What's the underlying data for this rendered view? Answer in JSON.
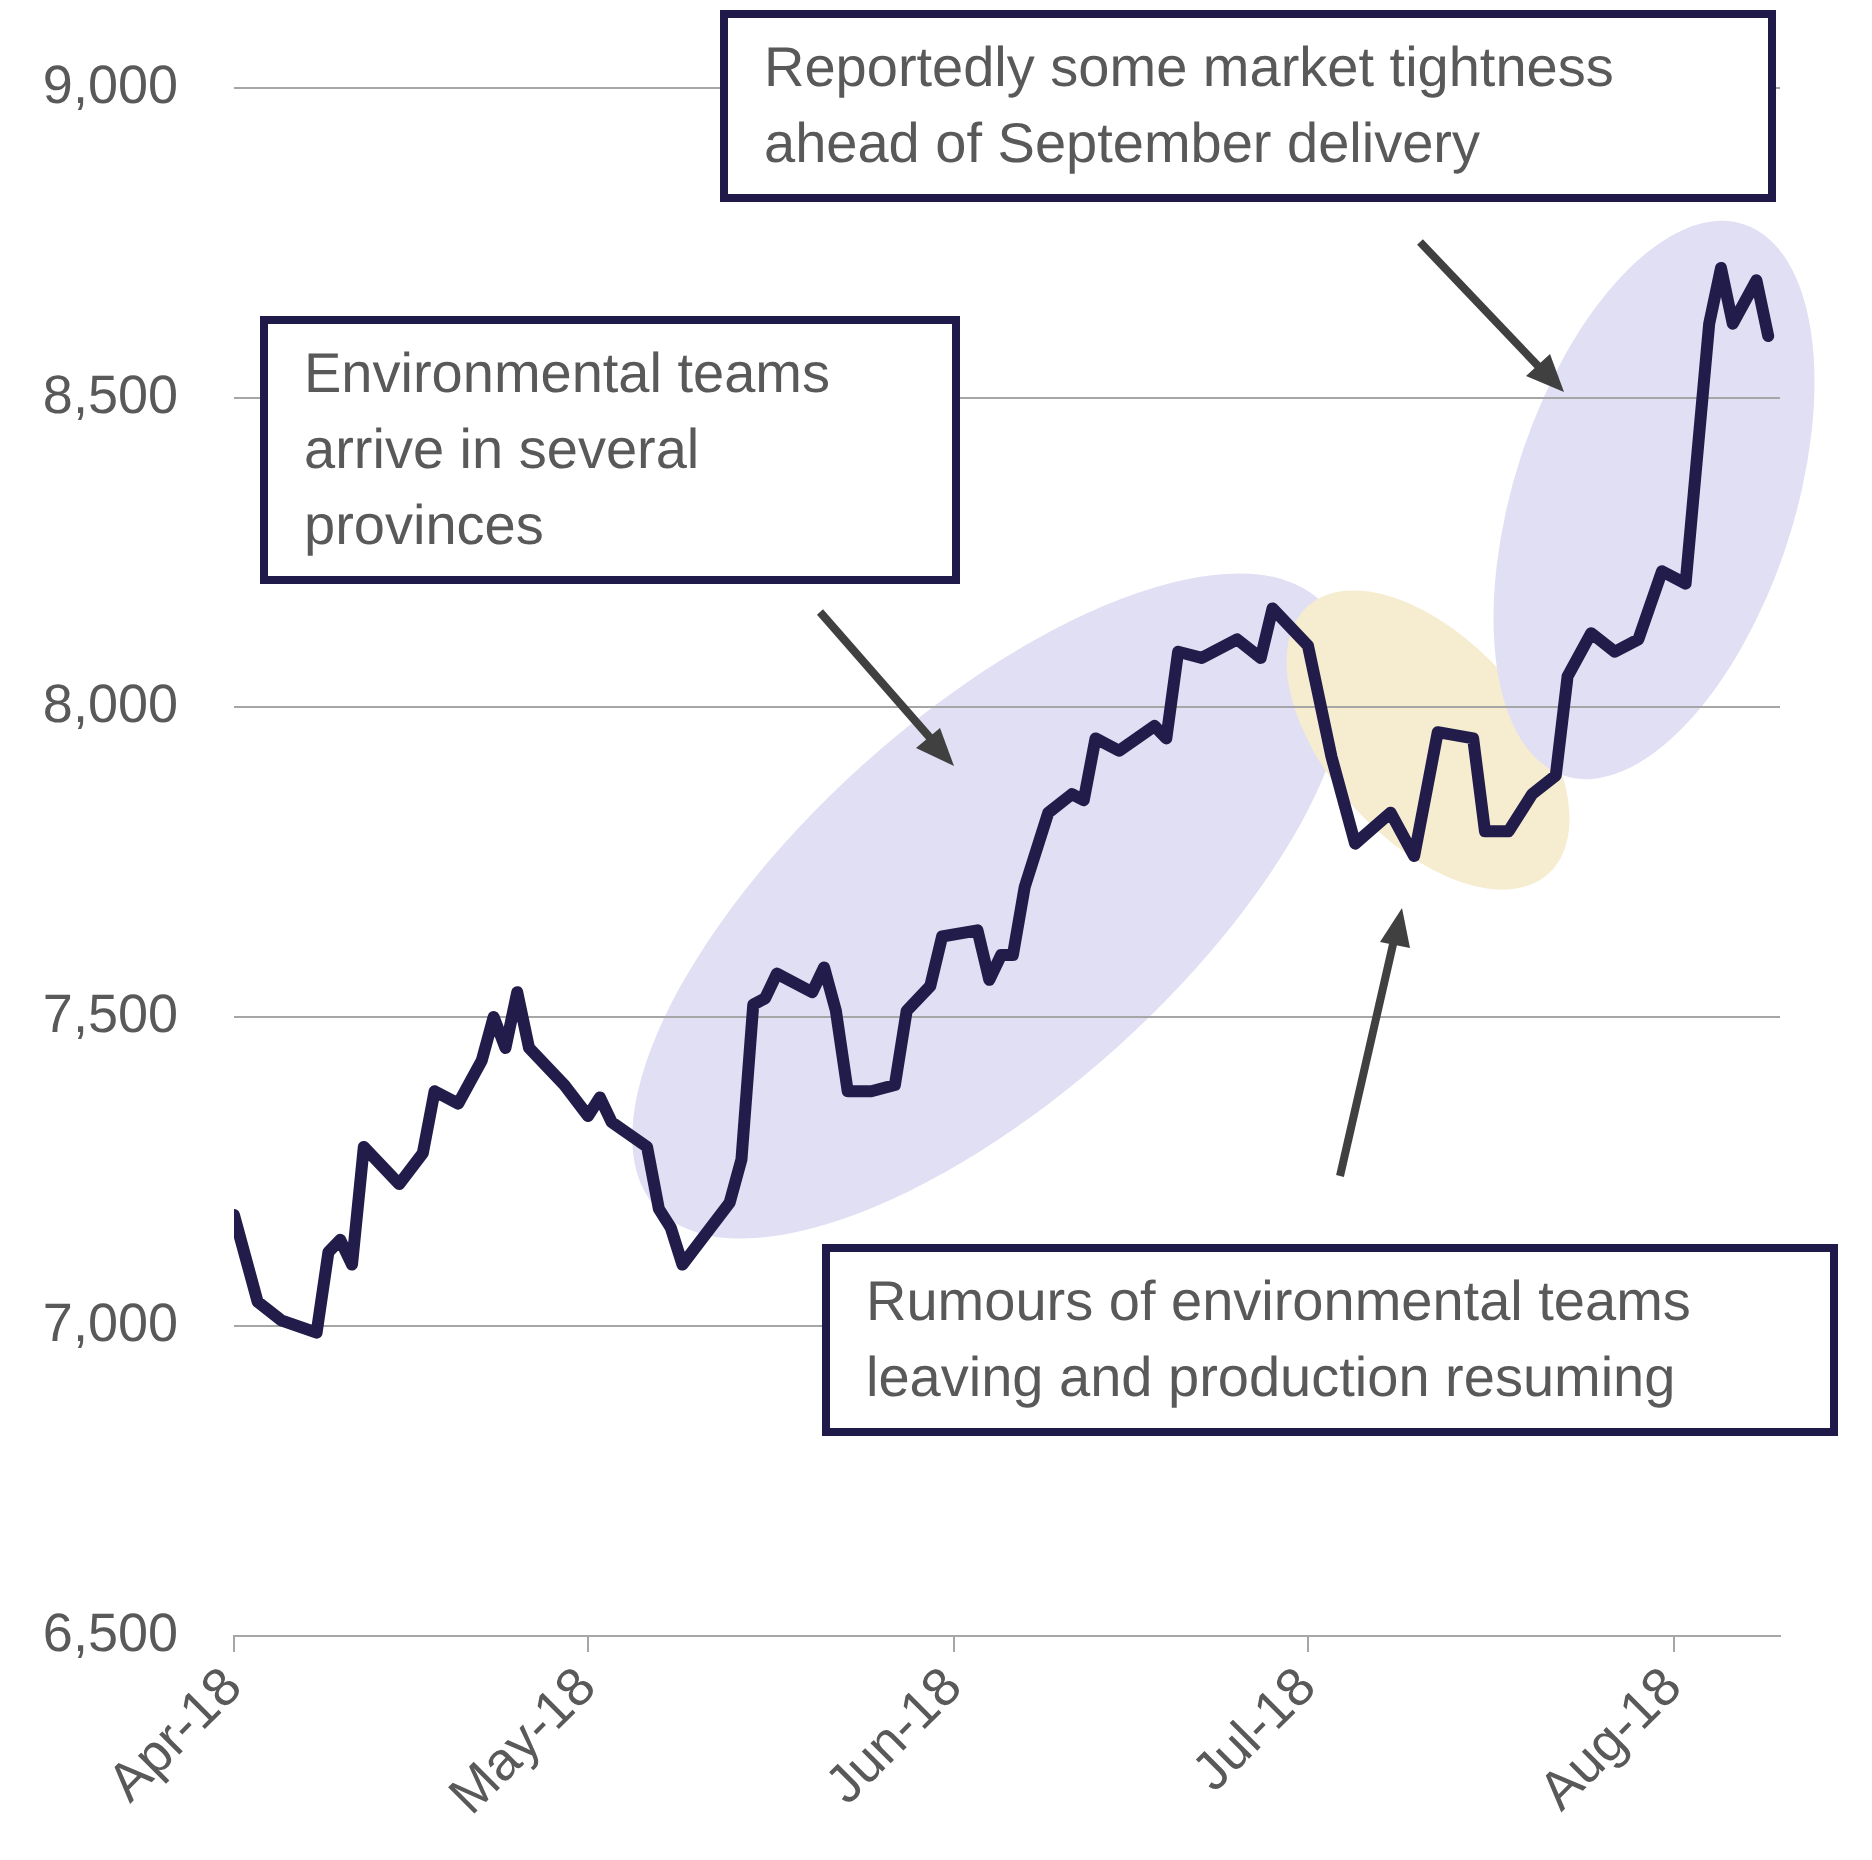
{
  "chart_data": {
    "type": "line",
    "x": [
      "2018-04-01",
      "2018-04-03",
      "2018-04-05",
      "2018-04-08",
      "2018-04-09",
      "2018-04-10",
      "2018-04-11",
      "2018-04-12",
      "2018-04-15",
      "2018-04-17",
      "2018-04-18",
      "2018-04-20",
      "2018-04-22",
      "2018-04-23",
      "2018-04-24",
      "2018-04-25",
      "2018-04-26",
      "2018-04-29",
      "2018-05-01",
      "2018-05-02",
      "2018-05-03",
      "2018-05-06",
      "2018-05-07",
      "2018-05-08",
      "2018-05-09",
      "2018-05-13",
      "2018-05-14",
      "2018-05-15",
      "2018-05-16",
      "2018-05-17",
      "2018-05-20",
      "2018-05-21",
      "2018-05-22",
      "2018-05-23",
      "2018-05-25",
      "2018-05-27",
      "2018-05-28",
      "2018-05-30",
      "2018-05-31",
      "2018-06-03",
      "2018-06-04",
      "2018-06-05",
      "2018-06-06",
      "2018-06-07",
      "2018-06-09",
      "2018-06-11",
      "2018-06-12",
      "2018-06-13",
      "2018-06-15",
      "2018-06-18",
      "2018-06-19",
      "2018-06-20",
      "2018-06-22",
      "2018-06-25",
      "2018-06-27",
      "2018-06-28",
      "2018-07-01",
      "2018-07-03",
      "2018-07-05",
      "2018-07-08",
      "2018-07-10",
      "2018-07-12",
      "2018-07-15",
      "2018-07-16",
      "2018-07-18",
      "2018-07-20",
      "2018-07-22",
      "2018-07-23",
      "2018-07-25",
      "2018-07-27",
      "2018-07-29",
      "2018-07-31",
      "2018-08-02",
      "2018-08-03",
      "2018-08-04",
      "2018-08-05",
      "2018-08-06",
      "2018-08-08",
      "2018-08-09"
    ],
    "series": [
      {
        "color": "#221c4a",
        "values": [
          7180,
          7040,
          7010,
          6990,
          7120,
          7140,
          7100,
          7290,
          7230,
          7280,
          7380,
          7360,
          7430,
          7500,
          7450,
          7540,
          7450,
          7390,
          7340,
          7370,
          7330,
          7290,
          7190,
          7160,
          7100,
          7200,
          7270,
          7520,
          7530,
          7570,
          7540,
          7580,
          7510,
          7380,
          7380,
          7390,
          7510,
          7550,
          7630,
          7640,
          7560,
          7600,
          7600,
          7710,
          7830,
          7860,
          7850,
          7950,
          7930,
          7970,
          7950,
          8090,
          8080,
          8110,
          8080,
          8160,
          8100,
          7920,
          7780,
          7830,
          7760,
          7960,
          7950,
          7800,
          7800,
          7860,
          7890,
          8050,
          8120,
          8090,
          8110,
          8220,
          8200,
          8410,
          8620,
          8710,
          8620,
          8690,
          8600
        ]
      }
    ],
    "xlim": [
      "2018-04-01",
      "2018-08-10"
    ],
    "xticks": [
      {
        "value": "2018-04-01",
        "label": "Apr-18"
      },
      {
        "value": "2018-05-01",
        "label": "May-18"
      },
      {
        "value": "2018-06-01",
        "label": "Jun-18"
      },
      {
        "value": "2018-07-01",
        "label": "Jul-18"
      },
      {
        "value": "2018-08-01",
        "label": "Aug-18"
      }
    ],
    "ylim": [
      6500,
      9000
    ],
    "yticks": [
      {
        "value": 6500,
        "label": "6,500"
      },
      {
        "value": 7000,
        "label": "7,000"
      },
      {
        "value": 7500,
        "label": "7,500"
      },
      {
        "value": 8000,
        "label": "8,000"
      },
      {
        "value": 8500,
        "label": "8,500"
      },
      {
        "value": 9000,
        "label": "9,000"
      }
    ],
    "grid": "y",
    "legend": false,
    "marker": "none",
    "line_style": "solid",
    "annotations": [
      "Reportedly some market tightness ahead of September delivery",
      "Environmental teams arrive in several provinces",
      "Rumours of environmental teams leaving and production resuming"
    ]
  }
}
